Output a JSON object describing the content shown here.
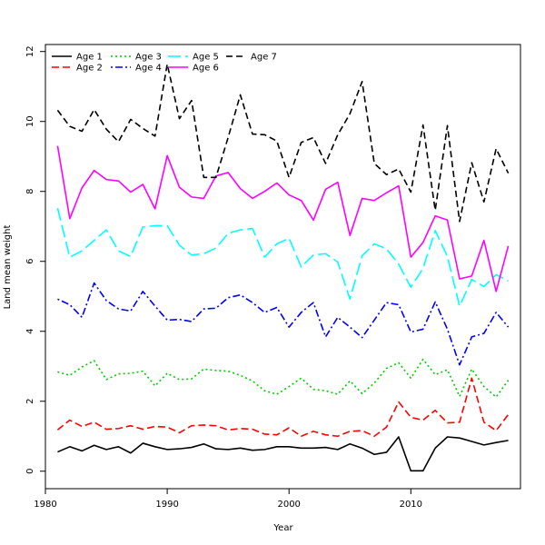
{
  "chart_data": {
    "type": "line",
    "title": "",
    "xlabel": "Year",
    "ylabel": "Land mean weight",
    "xlim": [
      1980,
      2019
    ],
    "ylim": [
      -0.5,
      12.2
    ],
    "x_ticks": [
      1980,
      1990,
      2000,
      2010
    ],
    "y_ticks": [
      0,
      2,
      4,
      6,
      8,
      10,
      12
    ],
    "grid": false,
    "legend_position": "top-left",
    "x": [
      1981,
      1982,
      1983,
      1984,
      1985,
      1986,
      1987,
      1988,
      1989,
      1990,
      1991,
      1992,
      1993,
      1994,
      1995,
      1996,
      1997,
      1998,
      1999,
      2000,
      2001,
      2002,
      2003,
      2004,
      2005,
      2006,
      2007,
      2008,
      2009,
      2010,
      2011,
      2012,
      2013,
      2014,
      2015,
      2016,
      2017,
      2018
    ],
    "series": [
      {
        "name": "Age 1",
        "color": "#000000",
        "dash": "solid",
        "values": [
          0.55,
          0.7,
          0.58,
          0.74,
          0.62,
          0.7,
          0.52,
          0.8,
          0.7,
          0.62,
          0.64,
          0.68,
          0.78,
          0.64,
          0.62,
          0.66,
          0.6,
          0.62,
          0.7,
          0.7,
          0.66,
          0.66,
          0.68,
          0.62,
          0.78,
          0.66,
          0.48,
          0.54,
          0.98,
          0.01,
          0.01,
          0.66,
          0.98,
          0.95,
          0.85,
          0.75,
          0.82,
          0.88
        ]
      },
      {
        "name": "Age 2",
        "color": "#ff0000",
        "dash": "dashed",
        "values": [
          1.18,
          1.46,
          1.28,
          1.4,
          1.2,
          1.22,
          1.3,
          1.2,
          1.28,
          1.26,
          1.1,
          1.3,
          1.32,
          1.3,
          1.18,
          1.22,
          1.2,
          1.06,
          1.04,
          1.24,
          1.0,
          1.14,
          1.04,
          1.0,
          1.14,
          1.16,
          1.0,
          1.26,
          1.98,
          1.54,
          1.46,
          1.74,
          1.38,
          1.4,
          2.66,
          1.4,
          1.16,
          1.62
        ]
      },
      {
        "name": "Age 3",
        "color": "#00cd00",
        "dash": "dotted",
        "values": [
          2.84,
          2.74,
          2.98,
          3.16,
          2.62,
          2.78,
          2.8,
          2.86,
          2.44,
          2.8,
          2.62,
          2.64,
          2.92,
          2.88,
          2.86,
          2.74,
          2.58,
          2.3,
          2.2,
          2.42,
          2.66,
          2.34,
          2.3,
          2.2,
          2.58,
          2.22,
          2.52,
          2.94,
          3.1,
          2.66,
          3.2,
          2.76,
          2.9,
          2.14,
          2.92,
          2.42,
          2.12,
          2.6
        ]
      },
      {
        "name": "Age 4",
        "color": "#0000ff",
        "dash": "dotdash",
        "values": [
          4.92,
          4.76,
          4.4,
          5.38,
          4.88,
          4.64,
          4.58,
          5.14,
          4.72,
          4.32,
          4.34,
          4.28,
          4.64,
          4.66,
          4.96,
          5.04,
          4.82,
          4.54,
          4.68,
          4.12,
          4.54,
          4.82,
          3.84,
          4.4,
          4.12,
          3.82,
          4.32,
          4.82,
          4.76,
          3.98,
          4.06,
          4.84,
          4.06,
          3.04,
          3.84,
          3.94,
          4.54,
          4.12
        ]
      },
      {
        "name": "Age 5",
        "color": "#00ffff",
        "dash": "longdash",
        "values": [
          7.52,
          6.12,
          6.3,
          6.6,
          6.9,
          6.3,
          6.14,
          6.98,
          7.02,
          7.02,
          6.46,
          6.18,
          6.22,
          6.38,
          6.8,
          6.9,
          6.94,
          6.12,
          6.5,
          6.66,
          5.84,
          6.18,
          6.22,
          5.98,
          4.92,
          6.16,
          6.5,
          6.36,
          5.92,
          5.26,
          5.8,
          6.88,
          6.14,
          4.72,
          5.48,
          5.28,
          5.62,
          5.44
        ]
      },
      {
        "name": "Age 6",
        "color": "#ff00ff",
        "dash": "solid",
        "values": [
          9.3,
          7.22,
          8.1,
          8.6,
          8.34,
          8.3,
          7.98,
          8.2,
          7.5,
          9.02,
          8.12,
          7.84,
          7.8,
          8.44,
          8.54,
          8.08,
          7.8,
          8.0,
          8.24,
          7.9,
          7.74,
          7.18,
          8.06,
          8.26,
          6.74,
          7.8,
          7.74,
          7.96,
          8.16,
          6.12,
          6.54,
          7.3,
          7.18,
          5.5,
          5.58,
          6.6,
          5.14,
          6.44
        ]
      },
      {
        "name": "Age 7",
        "color": "#000000",
        "dash": "shortdash",
        "values": [
          10.32,
          9.86,
          9.72,
          10.34,
          9.78,
          9.42,
          10.06,
          9.8,
          9.58,
          11.64,
          10.08,
          10.6,
          8.4,
          8.4,
          9.54,
          10.76,
          9.64,
          9.62,
          9.44,
          8.4,
          9.4,
          9.54,
          8.8,
          9.62,
          10.22,
          11.14,
          8.8,
          8.48,
          8.64,
          7.98,
          9.9,
          7.46,
          9.88,
          7.14,
          8.82,
          7.7,
          9.22,
          8.52
        ]
      }
    ]
  }
}
